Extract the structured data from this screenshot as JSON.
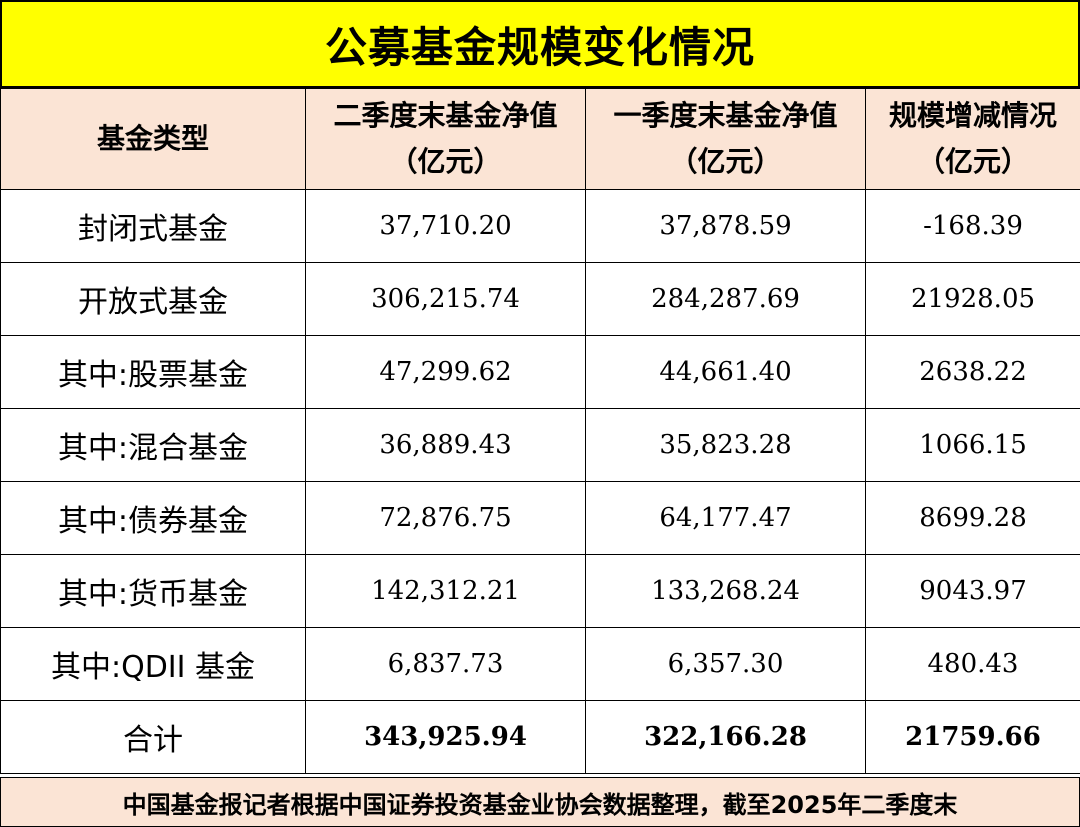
{
  "title": "公募基金规模变化情况",
  "headers": {
    "type": "基金类型",
    "q2": {
      "line1": "二季度末基金净值",
      "line2": "（亿元）"
    },
    "q1": {
      "line1": "一季度末基金净值",
      "line2": "（亿元）"
    },
    "change": {
      "line1": "规模增减情况",
      "line2": "（亿元）"
    }
  },
  "rows": [
    {
      "type": "封闭式基金",
      "q2": "37,710.20",
      "q1": "37,878.59",
      "change": "-168.39"
    },
    {
      "type": "开放式基金",
      "q2": "306,215.74",
      "q1": "284,287.69",
      "change": "21928.05"
    },
    {
      "type": "其中:股票基金",
      "q2": "47,299.62",
      "q1": "44,661.40",
      "change": "2638.22"
    },
    {
      "type": "其中:混合基金",
      "q2": "36,889.43",
      "q1": "35,823.28",
      "change": "1066.15"
    },
    {
      "type": "其中:债券基金",
      "q2": "72,876.75",
      "q1": "64,177.47",
      "change": "8699.28"
    },
    {
      "type": "其中:货币基金",
      "q2": "142,312.21",
      "q1": "133,268.24",
      "change": "9043.97"
    },
    {
      "type": "其中:QDII 基金",
      "q2": "6,837.73",
      "q1": "6,357.30",
      "change": "480.43"
    }
  ],
  "total": {
    "type": "合计",
    "q2": "343,925.94",
    "q1": "322,166.28",
    "change": "21759.66"
  },
  "footer": "中国基金报记者根据中国证券投资基金业协会数据整理，截至2025年二季度末",
  "colors": {
    "title_bg": "#ffff00",
    "header_bg": "#fbe4d5",
    "border": "#000000"
  }
}
